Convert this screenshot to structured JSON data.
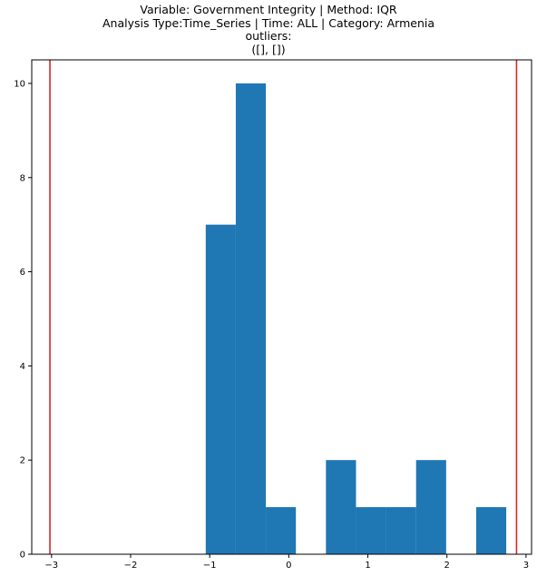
{
  "chart_data": {
    "type": "bar",
    "title_lines": [
      "Variable: Government Integrity | Method: IQR",
      "Analysis Type:Time_Series | Time: ALL | Category: Armenia",
      "outliers:",
      "([], [])"
    ],
    "xlabel": "",
    "ylabel": "",
    "xlim": [
      -3.25,
      3.07
    ],
    "ylim": [
      0,
      10.5
    ],
    "xticks": [
      -3,
      -2,
      -1,
      0,
      1,
      2,
      3
    ],
    "yticks": [
      0,
      2,
      4,
      6,
      8,
      10
    ],
    "bars": [
      {
        "x0": -1.05,
        "x1": -0.67,
        "value": 7
      },
      {
        "x0": -0.67,
        "x1": -0.29,
        "value": 10
      },
      {
        "x0": -0.29,
        "x1": 0.09,
        "value": 1
      },
      {
        "x0": 0.09,
        "x1": 0.47,
        "value": 0
      },
      {
        "x0": 0.47,
        "x1": 0.85,
        "value": 2
      },
      {
        "x0": 0.85,
        "x1": 1.23,
        "value": 1
      },
      {
        "x0": 1.23,
        "x1": 1.61,
        "value": 1
      },
      {
        "x0": 1.61,
        "x1": 1.99,
        "value": 2
      },
      {
        "x0": 1.99,
        "x1": 2.37,
        "value": 0
      },
      {
        "x0": 2.37,
        "x1": 2.75,
        "value": 1
      }
    ],
    "vlines": [
      -3.02,
      2.88
    ],
    "bar_color": "#1f77b4",
    "vline_color": "#d62728",
    "grid": false
  }
}
